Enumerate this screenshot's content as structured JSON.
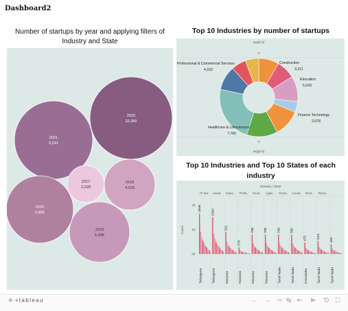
{
  "dashboard": {
    "title": "Dashboard2"
  },
  "panels": {
    "bubble_title": "Number of startups by year and applying filters of Industry and State",
    "pie_title": "Top 10 Industries by number of startups",
    "bar_title": "Top 10 Industries and Top 10 States of each industry"
  },
  "colors": {
    "panel_bg": "#dde9e6",
    "bubble_dark": "#875c80",
    "bar_pink": "#e58fa0",
    "bar_red": "#d9536a"
  },
  "chart_data": [
    {
      "type": "scatter",
      "subtype": "packed-bubble",
      "title": "Number of startups by year and applying filters of Industry and State",
      "bubbles": [
        {
          "year": "2022",
          "value": 10360,
          "label": "10,360"
        },
        {
          "year": "2021",
          "value": 9241,
          "label": "9,241"
        },
        {
          "year": "2020",
          "value": 6855,
          "label": "6,855"
        },
        {
          "year": "2019",
          "value": 5398,
          "label": "5,398"
        },
        {
          "year": "2018",
          "value": 4018,
          "label": "4,018"
        },
        {
          "year": "2017",
          "value": 2028,
          "label": "2,028"
        }
      ]
    },
    {
      "type": "pie",
      "subtype": "donut",
      "title": "Top 10 Industries by number of startups",
      "axis_top": "avg(0.0)",
      "axis_bottom": "avg(0.0)",
      "zero_top": "0",
      "zero_bottom": "0",
      "labeled_slices": [
        {
          "name": "Healthcare & Lifesciences",
          "value": 7766,
          "label": "7,766"
        },
        {
          "name": "Education",
          "value": 5543,
          "label": "5,543"
        },
        {
          "name": "Professional & Commercial Services",
          "value": 4153,
          "label": "4,153"
        },
        {
          "name": "Construction",
          "value": 3311,
          "label": "3,311"
        },
        {
          "name": "Finance Technology",
          "value": 2678,
          "label": "2,678"
        }
      ]
    },
    {
      "type": "bar",
      "title": "Top 10 Industries and Top 10 States of each industry",
      "column_header": "Industry / State",
      "industries": [
        "IT Ser..",
        "Healt..",
        "Educ..",
        "Profe..",
        "Food ..",
        "Agric..",
        "Finan..",
        "Const..",
        "Tech..",
        "Rene.."
      ],
      "states": [
        "Telangana",
        "Telangana",
        "Haryana",
        "Haryana",
        "Haryana",
        "Haryana",
        "Tamil Nadu",
        "Tamil Nadu",
        "Karnataka",
        "Tamil Nadu",
        "Tamil Nadu"
      ],
      "top_values": [
        1659,
        1504,
        911,
        278,
        798,
        799,
        796,
        785,
        475,
        543,
        400
      ],
      "y_ticks": [
        "2K",
        "1K",
        "0K"
      ],
      "ylabel": "Count",
      "ylim": [
        0,
        2000
      ]
    }
  ],
  "footer": {
    "brand_mark": "⁜",
    "brand": "+tableau",
    "nav_icons": [
      "undo-icon",
      "redo-icon",
      "revert-icon",
      "pause-icon",
      "share-icon",
      "download-icon",
      "fullscreen-icon"
    ]
  }
}
